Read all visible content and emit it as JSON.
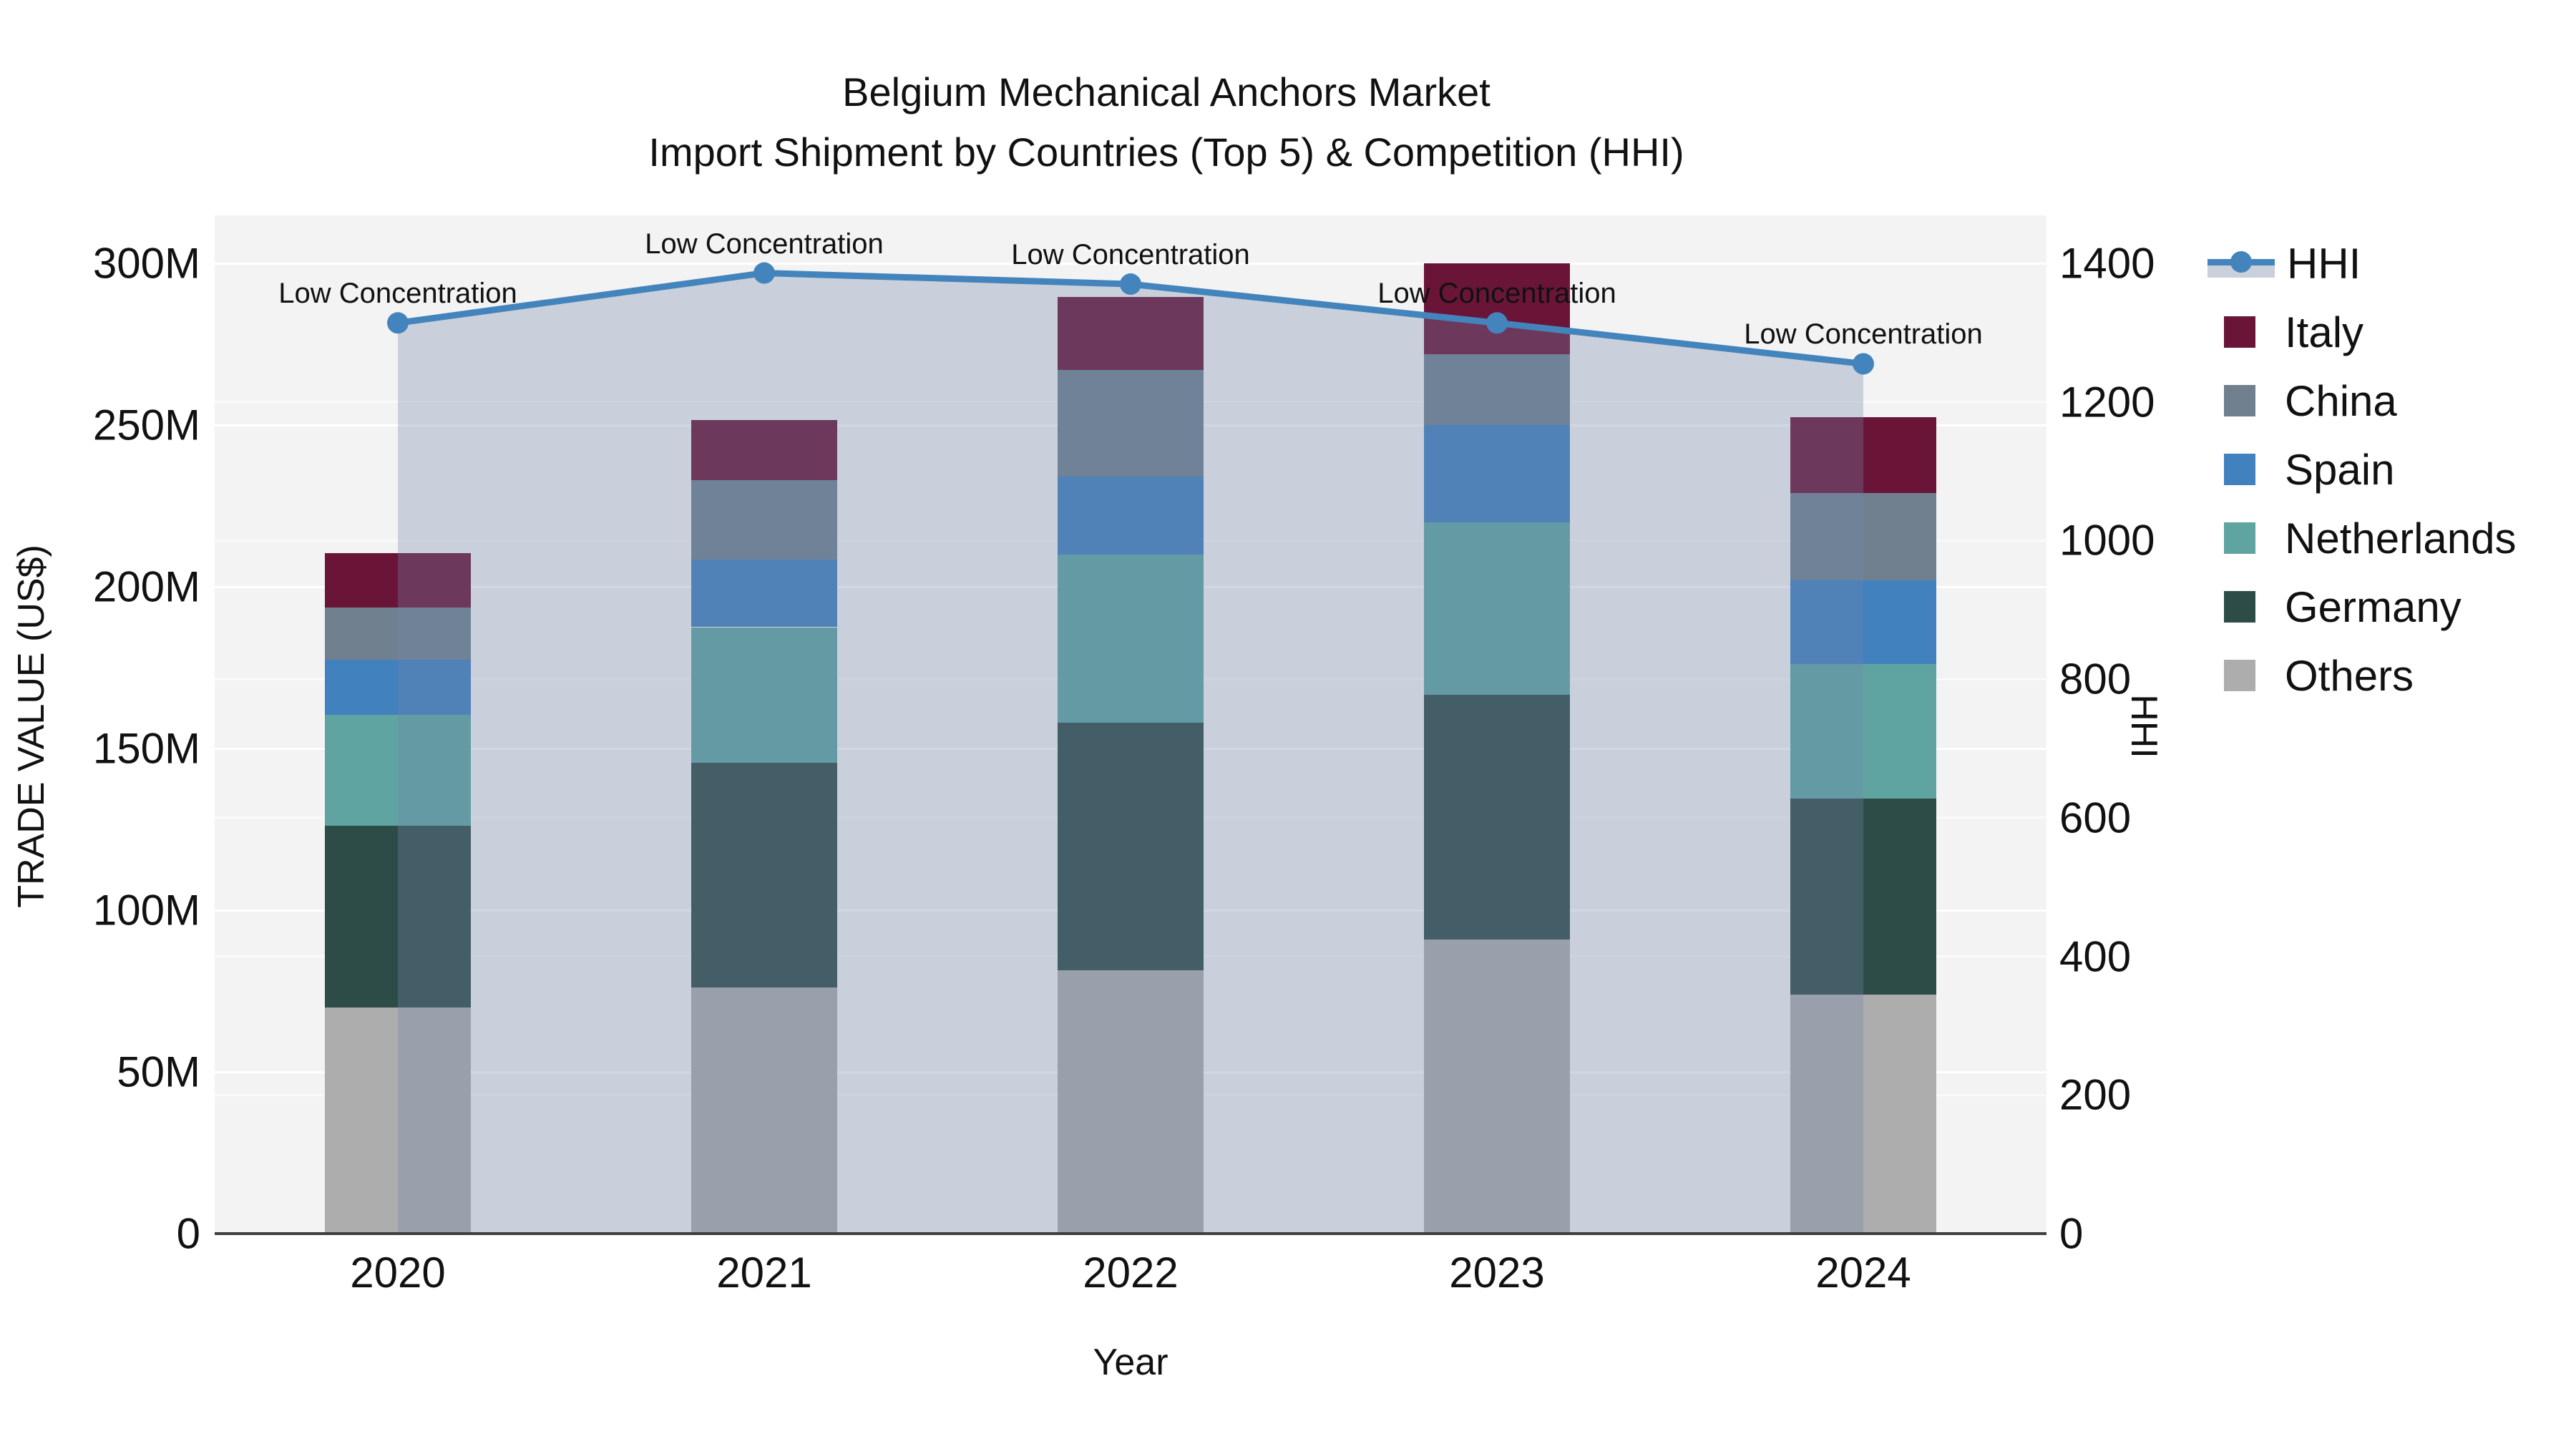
{
  "title": {
    "line1": "Belgium Mechanical Anchors Market",
    "line2": "Import Shipment by Countries (Top 5) & Competition (HHI)"
  },
  "axes": {
    "x": {
      "label": "Year"
    },
    "y_left": {
      "label": "TRADE VALUE (US$)",
      "ticks": [
        {
          "label": "0",
          "value": 0
        },
        {
          "label": "50M",
          "value": 50
        },
        {
          "label": "100M",
          "value": 100
        },
        {
          "label": "150M",
          "value": 150
        },
        {
          "label": "200M",
          "value": 200
        },
        {
          "label": "250M",
          "value": 250
        },
        {
          "label": "300M",
          "value": 300
        }
      ]
    },
    "y_right": {
      "label": "HHI",
      "ticks": [
        {
          "label": "0",
          "value": 0
        },
        {
          "label": "200",
          "value": 200
        },
        {
          "label": "400",
          "value": 400
        },
        {
          "label": "600",
          "value": 600
        },
        {
          "label": "800",
          "value": 800
        },
        {
          "label": "1000",
          "value": 1000
        },
        {
          "label": "1200",
          "value": 1200
        },
        {
          "label": "1400",
          "value": 1400
        }
      ]
    }
  },
  "colors": {
    "Italy": "#6A1538",
    "China": "#71808F",
    "Spain": "#4181BE",
    "Netherlands": "#5FA4A1",
    "Germany": "#2E4C47",
    "Others": "#ADADAD",
    "hhi_line": "#4484BC",
    "hhi_area": "rgba(113,135,170,0.32)",
    "plot_bg": "#F3F3F3",
    "axis_line": "#3F3F3F"
  },
  "legend": [
    {
      "label": "HHI",
      "type": "line"
    },
    {
      "label": "Italy",
      "type": "swatch"
    },
    {
      "label": "China",
      "type": "swatch"
    },
    {
      "label": "Spain",
      "type": "swatch"
    },
    {
      "label": "Netherlands",
      "type": "swatch"
    },
    {
      "label": "Germany",
      "type": "swatch"
    },
    {
      "label": "Others",
      "type": "swatch"
    }
  ],
  "chart_data": {
    "type": "bar",
    "subtype": "stacked-bar-with-line-overlay",
    "title": "Belgium Mechanical Anchors Market — Import Shipment by Countries (Top 5) & Competition (HHI)",
    "categories": [
      "2020",
      "2021",
      "2022",
      "2023",
      "2024"
    ],
    "xlabel": "Year",
    "ylabel_left": "TRADE VALUE (US$)",
    "ylabel_right": "HHI",
    "y_left_unit": "million US$",
    "y_left_range": [
      0,
      300
    ],
    "y_right_range": [
      0,
      1400
    ],
    "grid": true,
    "legend_position": "right",
    "stack_note": "series listed bottom to top; values in millions of US$",
    "series": [
      {
        "name": "Others",
        "values": [
          70.0,
          76.0,
          81.5,
          91.0,
          74.0
        ]
      },
      {
        "name": "Germany",
        "values": [
          56.0,
          69.5,
          76.5,
          75.5,
          60.5
        ]
      },
      {
        "name": "Netherlands",
        "values": [
          34.5,
          42.0,
          52.0,
          53.5,
          41.5
        ]
      },
      {
        "name": "Spain",
        "values": [
          17.0,
          21.0,
          24.0,
          30.0,
          26.0
        ]
      },
      {
        "name": "China",
        "values": [
          16.0,
          24.5,
          33.0,
          22.0,
          27.0
        ]
      },
      {
        "name": "Italy",
        "values": [
          17.0,
          18.5,
          22.5,
          28.0,
          23.5
        ]
      }
    ],
    "bar_totals": [
      210.5,
      251.5,
      289.5,
      300.0,
      252.5
    ],
    "line_series": {
      "name": "HHI",
      "axis": "right",
      "values": [
        1314,
        1386,
        1370,
        1314,
        1255
      ],
      "area_fill": true
    },
    "annotations": [
      {
        "category": "2020",
        "text": "Low Concentration"
      },
      {
        "category": "2021",
        "text": "Low Concentration"
      },
      {
        "category": "2022",
        "text": "Low Concentration"
      },
      {
        "category": "2023",
        "text": "Low Concentration"
      },
      {
        "category": "2024",
        "text": "Low Concentration"
      }
    ]
  }
}
